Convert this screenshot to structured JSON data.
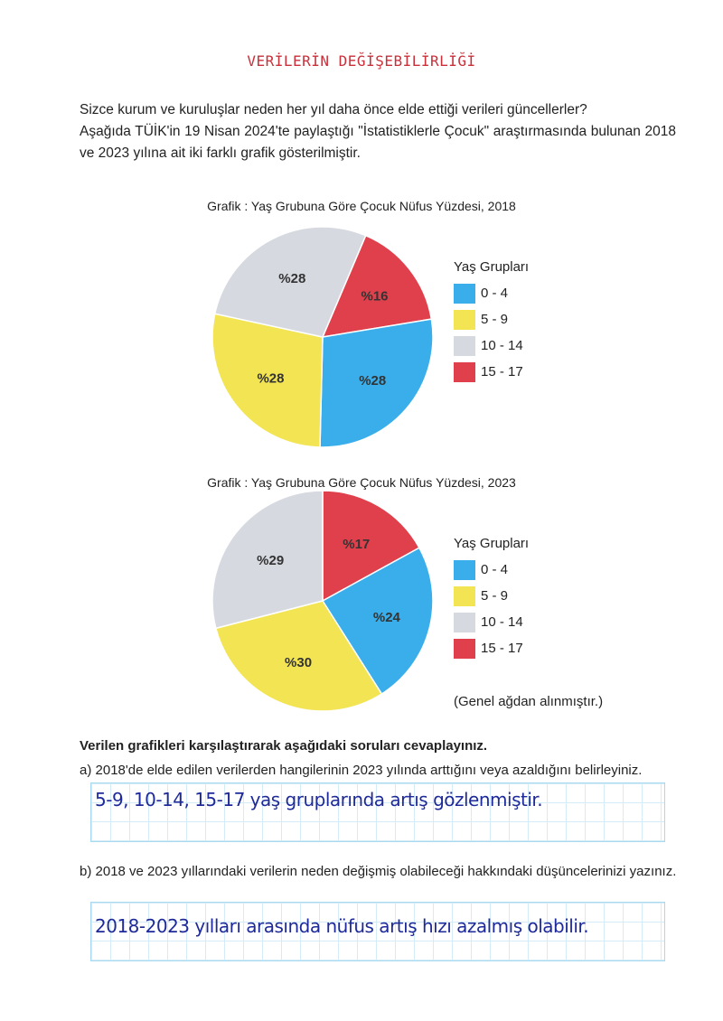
{
  "title": "VERİLERİN DEĞİŞEBİLİRLİĞİ",
  "intro": [
    "Sizce kurum ve kuruluşlar neden her yıl daha önce elde ettiği verileri güncellerler?",
    "Aşağıda TÜİK'in 19 Nisan 2024'te paylaştığı \"İstatistiklerle Çocuk\" araştırmasında bulunan 2018 ve 2023 yılına ait iki farklı grafik gösterilmiştir."
  ],
  "chart_data": [
    {
      "type": "pie",
      "title": "Grafik : Yaş Grubuna Göre Çocuk Nüfus Yüzdesi, 2018",
      "legend_title": "Yaş Grupları",
      "legend_position": "right",
      "categories": [
        "0 - 4",
        "5 - 9",
        "10 - 14",
        "15 - 17"
      ],
      "values": [
        28,
        28,
        28,
        16
      ],
      "labels": [
        "%28",
        "%28",
        "%28",
        "%16"
      ],
      "colors": [
        "#3aaeea",
        "#f2e453",
        "#d6d9e0",
        "#e0404c"
      ]
    },
    {
      "type": "pie",
      "title": "Grafik : Yaş Grubuna Göre Çocuk Nüfus Yüzdesi, 2023",
      "legend_title": "Yaş Grupları",
      "legend_position": "right",
      "categories": [
        "0 - 4",
        "5 - 9",
        "10 - 14",
        "15 - 17"
      ],
      "values": [
        24,
        30,
        29,
        17
      ],
      "labels": [
        "%24",
        "%30",
        "%29",
        "%17"
      ],
      "colors": [
        "#3aaeea",
        "#f2e453",
        "#d6d9e0",
        "#e0404c"
      ]
    }
  ],
  "source": "(Genel ağdan alınmıştır.)",
  "questions": {
    "heading": "Verilen grafikleri karşılaştırarak aşağıdaki soruları cevaplayınız.",
    "a": {
      "text": "a) 2018'de elde edilen verilerden hangilerinin 2023 yılında arttığını veya azaldığını belirleyiniz.",
      "answer": "5-9, 10-14, 15-17 yaş gruplarında artış gözlenmiştir."
    },
    "b": {
      "text": "b) 2018 ve 2023 yıllarındaki verilerin neden değişmiş olabileceği hakkındaki düşüncelerinizi yazınız.",
      "answer": "2018-2023 yılları arasında nüfus artış hızı azalmış olabilir."
    }
  }
}
